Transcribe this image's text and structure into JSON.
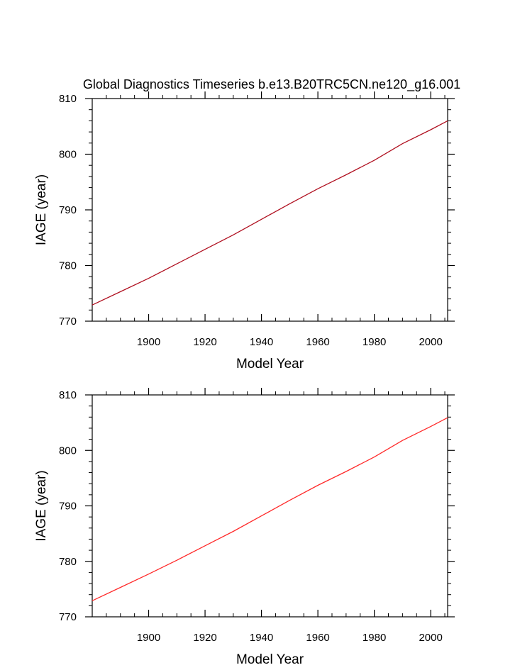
{
  "figure_title": "Global Diagnostics Timeseries b.e13.B20TRC5CN.ne120_g16.001",
  "chart_data": [
    {
      "type": "line",
      "title": "",
      "xlabel": "Model Year",
      "ylabel": "IAGE (year)",
      "xlim": [
        1880,
        2006
      ],
      "ylim": [
        770,
        810
      ],
      "x_major_ticks": [
        1900,
        1920,
        1940,
        1960,
        1980,
        2000
      ],
      "x_tick_labels": [
        "1900",
        "1920",
        "1940",
        "1960",
        "1980",
        "2000"
      ],
      "y_major_ticks": [
        770,
        780,
        790,
        800,
        810
      ],
      "y_tick_labels": [
        "770",
        "780",
        "790",
        "800",
        "810"
      ],
      "grid": false,
      "legend": "none",
      "series": [
        {
          "color": "#b01020",
          "x": [
            1880,
            1890,
            1900,
            1910,
            1920,
            1930,
            1940,
            1950,
            1960,
            1970,
            1980,
            1990,
            2000,
            2006
          ],
          "y": [
            772.9,
            775.3,
            777.7,
            780.3,
            782.9,
            785.5,
            788.3,
            791.1,
            793.8,
            796.3,
            798.9,
            801.9,
            804.4,
            806.0
          ]
        }
      ]
    },
    {
      "type": "line",
      "title": "",
      "xlabel": "Model Year",
      "ylabel": "IAGE (year)",
      "xlim": [
        1880,
        2006
      ],
      "ylim": [
        770,
        810
      ],
      "x_major_ticks": [
        1900,
        1920,
        1940,
        1960,
        1980,
        2000
      ],
      "x_tick_labels": [
        "1900",
        "1920",
        "1940",
        "1960",
        "1980",
        "2000"
      ],
      "y_major_ticks": [
        770,
        780,
        790,
        800,
        810
      ],
      "y_tick_labels": [
        "770",
        "780",
        "790",
        "800",
        "810"
      ],
      "grid": false,
      "legend": "none",
      "series": [
        {
          "color": "#ff2a2a",
          "x": [
            1880,
            1890,
            1900,
            1910,
            1920,
            1930,
            1940,
            1950,
            1960,
            1970,
            1980,
            1990,
            2000,
            2006
          ],
          "y": [
            772.9,
            775.3,
            777.7,
            780.2,
            782.8,
            785.4,
            788.2,
            791.0,
            793.7,
            796.2,
            798.8,
            801.8,
            804.3,
            805.9
          ]
        }
      ]
    }
  ]
}
